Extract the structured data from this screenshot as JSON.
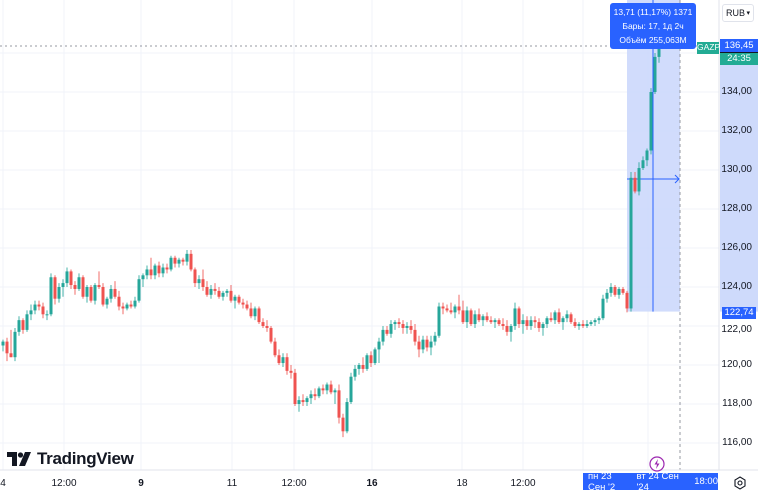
{
  "header": {
    "currency": "RUB"
  },
  "tooltip": {
    "line1": "13,71 (11,17%) 1371",
    "line2": "Бары: 17, 1д 2ч",
    "line3": "Объём 255,063M"
  },
  "symbol": {
    "ticker": "GAZP",
    "last_price": "136,45",
    "countdown": "24:35",
    "range_low_label": "122,74"
  },
  "price_axis": {
    "labels": [
      "134,00",
      "132,00",
      "130,00",
      "128,00",
      "126,00",
      "124,00",
      "122,00",
      "120,00",
      "118,00",
      "116,00"
    ]
  },
  "time_axis": {
    "labels": [
      {
        "text": "4",
        "bold": false
      },
      {
        "text": "12:00",
        "bold": false
      },
      {
        "text": "9",
        "bold": true
      },
      {
        "text": "11",
        "bold": false
      },
      {
        "text": "12:00",
        "bold": false
      },
      {
        "text": "16",
        "bold": true
      },
      {
        "text": "18",
        "bold": false
      },
      {
        "text": "12:00",
        "bold": false
      }
    ],
    "range_start": "пн 23 Сен '2",
    "range_end": "вт 24 Сен '24",
    "range_time": "18:00"
  },
  "branding": {
    "logo_text": "TradingView"
  },
  "colors": {
    "up": "#26a69a",
    "down": "#ef5350",
    "accent": "#2962ff",
    "selection_fill": "#c9d6fb",
    "grid": "#f0f3fa",
    "countdown_bg": "#22ab94",
    "event_icon": "#9c27b0"
  },
  "chart_data": {
    "type": "candlestick",
    "title": "GAZP",
    "currency": "RUB",
    "xlabel": "",
    "ylabel": "",
    "ylim": [
      115.5,
      137.5
    ],
    "y_ticks": [
      116,
      118,
      120,
      122,
      124,
      126,
      128,
      130,
      132,
      134
    ],
    "x_tick_labels": [
      "4",
      "12:00",
      "9",
      "11",
      "12:00",
      "16",
      "18",
      "12:00"
    ],
    "last_price": 136.45,
    "measure": {
      "change": 13.71,
      "change_pct": 11.17,
      "ticks": 1371,
      "bars": 17,
      "duration": "1д 2ч",
      "volume": "255,063M",
      "from": 122.74,
      "to": 136.45
    },
    "candles": [
      [
        3,
        121.0,
        121.3,
        120.7,
        121.2
      ],
      [
        7,
        121.2,
        121.4,
        120.2,
        120.6
      ],
      [
        11,
        120.6,
        121.8,
        120.4,
        120.4
      ],
      [
        15,
        120.4,
        121.9,
        120.2,
        121.7
      ],
      [
        19,
        121.7,
        122.5,
        121.5,
        122.3
      ],
      [
        23,
        122.3,
        122.4,
        121.6,
        121.8
      ],
      [
        27,
        121.8,
        122.8,
        121.7,
        122.6
      ],
      [
        31,
        122.6,
        123.1,
        122.3,
        122.8
      ],
      [
        35,
        122.8,
        123.3,
        122.6,
        123.1
      ],
      [
        39,
        123.1,
        123.3,
        122.8,
        123.0
      ],
      [
        43,
        123.0,
        123.2,
        122.4,
        122.6
      ],
      [
        47,
        122.6,
        122.8,
        122.3,
        122.6
      ],
      [
        51,
        122.6,
        124.7,
        122.5,
        124.5
      ],
      [
        55,
        124.5,
        124.6,
        123.1,
        123.4
      ],
      [
        59,
        123.4,
        124.2,
        123.2,
        124.0
      ],
      [
        63,
        124.0,
        124.4,
        123.5,
        124.2
      ],
      [
        67,
        124.2,
        125.0,
        124.0,
        124.8
      ],
      [
        71,
        124.8,
        124.9,
        123.9,
        124.1
      ],
      [
        75,
        124.1,
        124.3,
        123.6,
        123.9
      ],
      [
        79,
        123.9,
        124.7,
        123.8,
        124.5
      ],
      [
        83,
        124.5,
        124.6,
        123.4,
        123.5
      ],
      [
        87,
        123.5,
        124.1,
        123.2,
        124.0
      ],
      [
        91,
        124.0,
        124.1,
        123.2,
        123.3
      ],
      [
        95,
        123.3,
        124.2,
        123.1,
        124.1
      ],
      [
        99,
        124.1,
        124.8,
        123.9,
        124.0
      ],
      [
        103,
        124.0,
        124.2,
        123.0,
        123.1
      ],
      [
        107,
        123.1,
        123.5,
        122.9,
        123.4
      ],
      [
        111,
        123.4,
        124.1,
        123.2,
        123.9
      ],
      [
        115,
        123.9,
        124.3,
        123.4,
        123.5
      ],
      [
        119,
        123.5,
        123.8,
        122.8,
        123.0
      ],
      [
        123,
        123.0,
        123.2,
        122.6,
        122.9
      ],
      [
        127,
        122.9,
        123.2,
        122.8,
        123.1
      ],
      [
        131,
        123.1,
        123.3,
        122.9,
        123.0
      ],
      [
        135,
        123.0,
        123.5,
        122.9,
        123.3
      ],
      [
        139,
        123.3,
        124.6,
        123.2,
        124.4
      ],
      [
        143,
        124.4,
        124.7,
        124.0,
        124.6
      ],
      [
        147,
        124.6,
        125.1,
        124.4,
        124.9
      ],
      [
        151,
        124.9,
        125.5,
        124.4,
        124.6
      ],
      [
        155,
        124.6,
        125.2,
        124.4,
        125.1
      ],
      [
        159,
        125.1,
        125.3,
        124.5,
        124.7
      ],
      [
        163,
        124.7,
        125.2,
        124.5,
        125.0
      ],
      [
        167,
        125.0,
        125.2,
        124.7,
        124.9
      ],
      [
        171,
        124.9,
        125.6,
        124.8,
        125.5
      ],
      [
        175,
        125.5,
        125.6,
        125.0,
        125.2
      ],
      [
        179,
        125.2,
        125.5,
        125.0,
        125.4
      ],
      [
        183,
        125.4,
        125.5,
        125.1,
        125.3
      ],
      [
        187,
        125.3,
        125.9,
        125.1,
        125.7
      ],
      [
        191,
        125.7,
        125.9,
        124.8,
        124.9
      ],
      [
        195,
        124.9,
        125.0,
        124.0,
        124.2
      ],
      [
        199,
        124.2,
        124.6,
        123.9,
        124.4
      ],
      [
        203,
        124.4,
        124.9,
        123.8,
        124.0
      ],
      [
        207,
        124.0,
        124.3,
        123.5,
        123.6
      ],
      [
        211,
        123.6,
        124.1,
        123.4,
        123.9
      ],
      [
        215,
        123.9,
        124.2,
        123.6,
        123.8
      ],
      [
        219,
        123.8,
        124.0,
        123.4,
        123.5
      ],
      [
        223,
        123.5,
        123.8,
        123.3,
        123.7
      ],
      [
        227,
        123.7,
        123.9,
        123.5,
        123.8
      ],
      [
        231,
        123.8,
        124.1,
        123.2,
        123.3
      ],
      [
        235,
        123.3,
        123.6,
        122.9,
        123.5
      ],
      [
        239,
        123.5,
        123.6,
        123.1,
        123.2
      ],
      [
        243,
        123.2,
        123.4,
        122.9,
        123.1
      ],
      [
        247,
        123.1,
        123.3,
        122.8,
        122.9
      ],
      [
        251,
        122.9,
        123.2,
        122.4,
        122.5
      ],
      [
        255,
        122.5,
        123.0,
        122.3,
        122.9
      ],
      [
        259,
        122.9,
        123.0,
        122.1,
        122.2
      ],
      [
        263,
        122.2,
        122.4,
        121.9,
        122.0
      ],
      [
        267,
        122.0,
        122.3,
        121.7,
        121.9
      ],
      [
        271,
        121.9,
        122.0,
        121.1,
        121.2
      ],
      [
        275,
        121.2,
        121.4,
        120.4,
        120.5
      ],
      [
        279,
        120.5,
        120.8,
        120.0,
        120.1
      ],
      [
        283,
        120.1,
        120.6,
        119.9,
        120.4
      ],
      [
        287,
        120.4,
        120.6,
        119.5,
        119.7
      ],
      [
        291,
        119.7,
        120.0,
        119.3,
        119.6
      ],
      [
        295,
        119.6,
        119.8,
        117.9,
        118.0
      ],
      [
        299,
        118.0,
        118.4,
        117.6,
        118.2
      ],
      [
        303,
        118.2,
        118.5,
        117.9,
        118.1
      ],
      [
        307,
        118.1,
        118.4,
        117.9,
        118.3
      ],
      [
        311,
        118.3,
        118.7,
        118.0,
        118.5
      ],
      [
        315,
        118.5,
        118.8,
        118.2,
        118.4
      ],
      [
        319,
        118.4,
        118.9,
        118.3,
        118.8
      ],
      [
        323,
        118.8,
        119.0,
        118.5,
        118.7
      ],
      [
        327,
        118.7,
        119.1,
        118.5,
        119.0
      ],
      [
        331,
        119.0,
        119.2,
        118.5,
        118.6
      ],
      [
        335,
        118.6,
        118.8,
        118.0,
        118.7
      ],
      [
        339,
        118.7,
        119.0,
        117.0,
        117.3
      ],
      [
        343,
        117.3,
        117.5,
        116.3,
        116.6
      ],
      [
        347,
        116.6,
        118.3,
        116.5,
        118.1
      ],
      [
        351,
        118.1,
        119.6,
        118.0,
        119.4
      ],
      [
        355,
        119.4,
        120.0,
        119.2,
        119.8
      ],
      [
        359,
        119.8,
        120.1,
        119.5,
        120.0
      ],
      [
        363,
        120.0,
        120.4,
        119.6,
        119.8
      ],
      [
        367,
        119.8,
        120.6,
        119.7,
        120.5
      ],
      [
        371,
        120.5,
        120.7,
        119.9,
        120.1
      ],
      [
        375,
        120.1,
        120.9,
        120.0,
        120.8
      ],
      [
        379,
        120.8,
        121.4,
        120.1,
        121.2
      ],
      [
        383,
        121.2,
        122.0,
        121.0,
        121.8
      ],
      [
        387,
        121.8,
        122.0,
        121.5,
        121.6
      ],
      [
        391,
        121.6,
        122.3,
        121.4,
        122.1
      ],
      [
        395,
        122.1,
        122.3,
        121.8,
        122.2
      ],
      [
        399,
        122.2,
        122.4,
        121.9,
        122.1
      ],
      [
        403,
        122.1,
        122.3,
        121.6,
        121.9
      ],
      [
        407,
        121.9,
        122.2,
        121.6,
        122.0
      ],
      [
        411,
        122.0,
        122.3,
        121.6,
        121.8
      ],
      [
        415,
        121.8,
        122.1,
        121.0,
        121.2
      ],
      [
        419,
        121.2,
        121.5,
        120.4,
        120.8
      ],
      [
        423,
        120.8,
        121.5,
        120.6,
        121.3
      ],
      [
        427,
        121.3,
        121.5,
        120.7,
        120.9
      ],
      [
        431,
        120.9,
        121.5,
        120.5,
        121.2
      ],
      [
        435,
        121.2,
        121.7,
        121.0,
        121.5
      ],
      [
        439,
        121.5,
        123.2,
        121.4,
        123.0
      ],
      [
        443,
        123.0,
        123.2,
        122.6,
        122.9
      ],
      [
        447,
        122.9,
        123.1,
        122.7,
        122.8
      ],
      [
        451,
        122.8,
        123.2,
        122.6,
        122.7
      ],
      [
        455,
        122.7,
        123.1,
        122.4,
        123.0
      ],
      [
        459,
        123.0,
        123.6,
        122.6,
        122.8
      ],
      [
        463,
        122.8,
        123.3,
        122.1,
        122.2
      ],
      [
        467,
        122.2,
        123.0,
        121.9,
        122.8
      ],
      [
        471,
        122.8,
        122.9,
        122.0,
        122.1
      ],
      [
        475,
        122.1,
        122.8,
        121.9,
        122.6
      ],
      [
        479,
        122.6,
        122.9,
        122.2,
        122.3
      ],
      [
        483,
        122.3,
        122.6,
        122.0,
        122.5
      ],
      [
        487,
        122.5,
        122.7,
        122.2,
        122.3
      ],
      [
        491,
        122.3,
        122.5,
        122.1,
        122.2
      ],
      [
        495,
        122.2,
        122.4,
        121.9,
        122.3
      ],
      [
        499,
        122.3,
        122.4,
        122.0,
        122.1
      ],
      [
        503,
        122.1,
        122.4,
        121.8,
        122.0
      ],
      [
        507,
        122.0,
        122.3,
        121.5,
        121.7
      ],
      [
        511,
        121.7,
        122.1,
        121.2,
        122.0
      ],
      [
        515,
        122.0,
        123.2,
        121.8,
        122.9
      ],
      [
        519,
        122.9,
        123.0,
        121.9,
        122.1
      ],
      [
        523,
        122.1,
        122.6,
        121.6,
        122.3
      ],
      [
        527,
        122.3,
        122.5,
        121.8,
        122.0
      ],
      [
        531,
        122.0,
        122.5,
        121.8,
        122.3
      ],
      [
        535,
        122.3,
        122.5,
        121.9,
        122.2
      ],
      [
        539,
        122.2,
        122.4,
        121.7,
        121.9
      ],
      [
        543,
        121.9,
        122.2,
        121.5,
        122.1
      ],
      [
        547,
        122.1,
        122.5,
        121.9,
        122.4
      ],
      [
        551,
        122.4,
        122.7,
        122.2,
        122.3
      ],
      [
        555,
        122.3,
        122.8,
        122.1,
        122.7
      ],
      [
        559,
        122.7,
        122.9,
        122.1,
        122.2
      ],
      [
        563,
        122.2,
        122.5,
        121.8,
        122.4
      ],
      [
        567,
        122.4,
        122.8,
        122.2,
        122.6
      ],
      [
        571,
        122.6,
        122.7,
        122.1,
        122.2
      ],
      [
        575,
        122.2,
        122.4,
        121.9,
        122.0
      ],
      [
        579,
        122.0,
        122.2,
        121.8,
        122.1
      ],
      [
        583,
        122.1,
        122.3,
        121.9,
        122.0
      ],
      [
        587,
        122.0,
        122.3,
        121.9,
        122.1
      ],
      [
        591,
        122.1,
        122.3,
        122.0,
        122.2
      ],
      [
        595,
        122.2,
        122.4,
        122.0,
        122.3
      ],
      [
        599,
        122.3,
        122.5,
        122.1,
        122.4
      ],
      [
        603,
        122.4,
        123.6,
        122.3,
        123.4
      ],
      [
        607,
        123.4,
        123.9,
        123.2,
        123.7
      ],
      [
        611,
        123.7,
        124.2,
        123.5,
        124.0
      ],
      [
        615,
        124.0,
        124.1,
        123.5,
        123.6
      ],
      [
        619,
        123.6,
        124.0,
        123.4,
        123.9
      ],
      [
        623,
        123.9,
        124.0,
        123.6,
        123.7
      ],
      [
        627,
        123.7,
        123.8,
        122.7,
        122.9
      ],
      [
        631,
        122.9,
        129.9,
        122.74,
        129.6
      ],
      [
        635,
        129.6,
        129.9,
        128.8,
        128.9
      ],
      [
        639,
        128.9,
        130.4,
        128.7,
        130.1
      ],
      [
        643,
        130.1,
        130.7,
        130.0,
        130.5
      ],
      [
        647,
        130.5,
        131.1,
        130.2,
        131.0
      ],
      [
        651,
        131.0,
        134.2,
        130.8,
        134.0
      ],
      [
        655,
        134.0,
        136.0,
        133.9,
        135.8
      ],
      [
        659,
        135.8,
        136.9,
        135.5,
        136.45
      ]
    ]
  }
}
